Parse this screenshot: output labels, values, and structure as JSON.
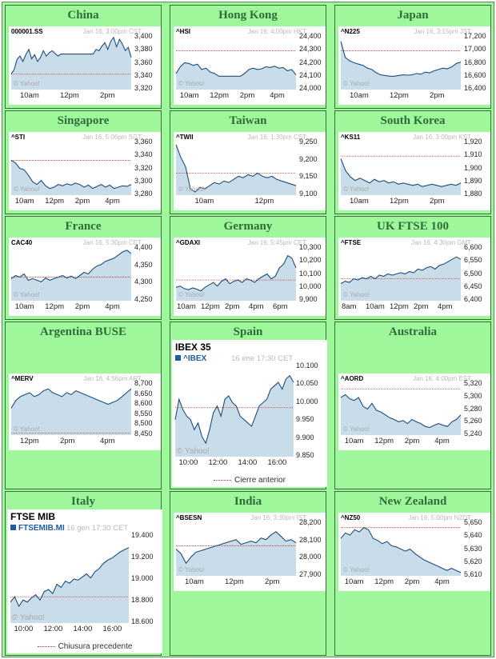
{
  "colors": {
    "background": "#9ff79c",
    "title": "#2e6d38",
    "line": "#1e4d7a",
    "fill": "#c9dcea",
    "prevclose": "#c0392b"
  },
  "charts": [
    {
      "region": "China",
      "symbol": "000001.SS",
      "stamp": "Jan 16, 3:00pm CST",
      "watermark": "© Yahoo!",
      "yticks": [
        "3,400",
        "3,380",
        "3,360",
        "3,340",
        "3,320"
      ],
      "xticks": [
        "10am",
        "12pm",
        "2pm"
      ],
      "ymin": 3320,
      "ymax": 3400,
      "prev": 3343,
      "series": [
        3343,
        3350,
        3365,
        3370,
        3362,
        3372,
        3380,
        3366,
        3372,
        3362,
        3368,
        3378,
        3370,
        3375,
        3378,
        3374,
        3370,
        3373,
        3373,
        3373,
        3373,
        3373,
        3373,
        3373,
        3373,
        3373,
        3373,
        3373,
        3373,
        3380,
        3378,
        3385,
        3390,
        3380,
        3392,
        3398,
        3384,
        3395,
        3388,
        3378,
        3383,
        3368
      ]
    },
    {
      "region": "Hong Kong",
      "symbol": "^HSI",
      "stamp": "Jan 16, 4:00pm HKT",
      "watermark": "© Yahoo!",
      "yticks": [
        "24,400",
        "24,300",
        "24,200",
        "24,100",
        "24,000"
      ],
      "xticks": [
        "10am",
        "12pm",
        "2pm",
        "4pm"
      ],
      "ymin": 24000,
      "ymax": 24400,
      "prev": 24290,
      "series": [
        24120,
        24170,
        24200,
        24195,
        24180,
        24190,
        24150,
        24160,
        24130,
        24120,
        24100,
        24100,
        24100,
        24100,
        24100,
        24100,
        24120,
        24150,
        24160,
        24150,
        24155,
        24170,
        24165,
        24175,
        24160,
        24165,
        24140,
        24150,
        24110
      ]
    },
    {
      "region": "Japan",
      "symbol": "^N225",
      "stamp": "Jan 16, 3:15pm JST",
      "watermark": "© Yahoo!",
      "yticks": [
        "17,200",
        "17,000",
        "16,800",
        "16,600",
        "16,400"
      ],
      "xticks": [
        "10am",
        "12pm",
        "2pm"
      ],
      "ymin": 16400,
      "ymax": 17200,
      "prev": 16980,
      "series": [
        17120,
        16880,
        16830,
        16800,
        16780,
        16760,
        16720,
        16700,
        16650,
        16620,
        16610,
        16600,
        16600,
        16610,
        16620,
        16615,
        16620,
        16640,
        16630,
        16660,
        16650,
        16680,
        16700,
        16720,
        16710,
        16740,
        16790,
        16810
      ]
    },
    {
      "region": "Singapore",
      "symbol": "^STI",
      "stamp": "Jan 16, 5:06pm SGT",
      "watermark": "© Yahoo!",
      "yticks": [
        "3,360",
        "3,340",
        "3,320",
        "3,300",
        "3,280"
      ],
      "xticks": [
        "10am",
        "12pm",
        "2pm",
        "4pm"
      ],
      "ymin": 3280,
      "ymax": 3360,
      "prev": 3332,
      "series": [
        3332,
        3328,
        3320,
        3318,
        3310,
        3300,
        3296,
        3302,
        3294,
        3290,
        3292,
        3296,
        3294,
        3297,
        3295,
        3298,
        3296,
        3292,
        3295,
        3290,
        3293,
        3296,
        3292,
        3295,
        3290,
        3292,
        3294,
        3293,
        3296
      ]
    },
    {
      "region": "Taiwan",
      "symbol": "^TWII",
      "stamp": "Jan 16, 1:30pm CST",
      "watermark": "© Yahoo!",
      "yticks": [
        "9,250",
        "9,200",
        "9,150",
        "9,100"
      ],
      "xticks": [
        "10am",
        "12pm"
      ],
      "ymin": 9090,
      "ymax": 9260,
      "prev": 9160,
      "series": [
        9250,
        9210,
        9180,
        9110,
        9100,
        9115,
        9110,
        9120,
        9130,
        9125,
        9135,
        9130,
        9140,
        9150,
        9145,
        9155,
        9150,
        9160,
        9150,
        9145,
        9150,
        9140,
        9135,
        9130,
        9125,
        9120
      ]
    },
    {
      "region": "South Korea",
      "symbol": "^KS11",
      "stamp": "Jan 16, 3:00pm KST",
      "watermark": "© Yahoo!",
      "yticks": [
        "1,920",
        "1,910",
        "1,900",
        "1,890",
        "1,880"
      ],
      "xticks": [
        "10am",
        "12pm",
        "2pm"
      ],
      "ymin": 1878,
      "ymax": 1922,
      "prev": 1910,
      "series": [
        1908,
        1898,
        1893,
        1890,
        1892,
        1890,
        1888,
        1891,
        1889,
        1890,
        1888,
        1889,
        1887,
        1888,
        1887,
        1886,
        1887,
        1885,
        1886,
        1887,
        1886,
        1885,
        1886,
        1887,
        1886,
        1888
      ]
    },
    {
      "region": "France",
      "symbol": "CAC40",
      "stamp": "Jan 16, 5:30pm CET",
      "watermark": "© Yahoo!",
      "yticks": [
        "4,400",
        "4,350",
        "4,300",
        "4,250"
      ],
      "xticks": [
        "10am",
        "12pm",
        "2pm",
        "4pm"
      ],
      "ymin": 4240,
      "ymax": 4410,
      "prev": 4315,
      "series": [
        4310,
        4320,
        4315,
        4325,
        4305,
        4310,
        4305,
        4300,
        4312,
        4305,
        4310,
        4315,
        4320,
        4312,
        4318,
        4310,
        4320,
        4330,
        4325,
        4340,
        4350,
        4355,
        4365,
        4370,
        4375,
        4385,
        4395,
        4400,
        4390
      ]
    },
    {
      "region": "Germany",
      "symbol": "^GDAXI",
      "stamp": "Jan 16, 5:45pm CET",
      "watermark": "© Yahoo!",
      "yticks": [
        "10,300",
        "10,200",
        "10,100",
        "10,000",
        "9,900"
      ],
      "xticks": [
        "10am",
        "12pm",
        "2pm",
        "4pm",
        "6pm"
      ],
      "ymin": 9880,
      "ymax": 10320,
      "prev": 10050,
      "series": [
        9990,
        10000,
        9980,
        9970,
        9985,
        9975,
        9960,
        9990,
        10010,
        10030,
        10000,
        10040,
        10060,
        10020,
        10040,
        10050,
        10030,
        10060,
        10050,
        10030,
        10060,
        10080,
        10100,
        10060,
        10080,
        10150,
        10180,
        10250,
        10230,
        10150
      ]
    },
    {
      "region": "UK FTSE 100",
      "symbol": "^FTSE",
      "stamp": "Jan 16, 4:30pm GMT",
      "watermark": "© Yahoo!",
      "yticks": [
        "6,600",
        "6,550",
        "6,500",
        "6,450",
        "6,400"
      ],
      "xticks": [
        "8am",
        "10am",
        "12pm",
        "2pm",
        "4pm"
      ],
      "ymin": 6390,
      "ymax": 6610,
      "prev": 6480,
      "series": [
        6460,
        6470,
        6465,
        6480,
        6475,
        6485,
        6480,
        6490,
        6480,
        6495,
        6490,
        6500,
        6495,
        6500,
        6505,
        6500,
        6510,
        6505,
        6520,
        6515,
        6525,
        6530,
        6520,
        6535,
        6540,
        6550,
        6560,
        6570,
        6560
      ]
    },
    {
      "region": "Argentina BUSE",
      "symbol": "^MERV",
      "stamp": "Jan 16, 4:56pm ART",
      "watermark": "© Yahoo!",
      "yticks": [
        "8,700",
        "8,650",
        "8,600",
        "8,550",
        "8,500",
        "8,450"
      ],
      "xticks": [
        "12pm",
        "2pm",
        "4pm"
      ],
      "ymin": 8440,
      "ymax": 8710,
      "prev": 8450,
      "series": [
        8580,
        8620,
        8640,
        8650,
        8660,
        8640,
        8650,
        8670,
        8680,
        8660,
        8650,
        8640,
        8660,
        8650,
        8670,
        8660,
        8650,
        8640,
        8630,
        8620,
        8610,
        8600,
        8610,
        8620,
        8640,
        8660,
        8680
      ]
    },
    {
      "region": "Spain",
      "big": true,
      "title": "IBEX 35",
      "symbol": "^IBEX",
      "stamp": "16 ene 17:30 CET",
      "watermark": "© Yahoo!",
      "legend": "Cierre anterior",
      "yticks": [
        "10.100",
        "10.050",
        "10.000",
        "9.950",
        "9.900",
        "9.850"
      ],
      "xticks": [
        "10:00",
        "12:00",
        "14:00",
        "16:00"
      ],
      "ymin": 9840,
      "ymax": 10110,
      "prev": 9985,
      "series": [
        9950,
        10010,
        9980,
        9960,
        9950,
        9920,
        9940,
        9900,
        9880,
        9920,
        9970,
        9990,
        9960,
        10010,
        10020,
        10000,
        9990,
        9960,
        9950,
        9940,
        9930,
        9960,
        9990,
        10000,
        10010,
        10040,
        10050,
        10060,
        10040,
        10070,
        10080,
        10060
      ]
    },
    {
      "region": "Australia",
      "symbol": "^AORD",
      "stamp": "Jan 16, 4:00pm EST",
      "watermark": "© Yahoo!",
      "yticks": [
        "5,320",
        "5,300",
        "5,280",
        "5,260",
        "5,240"
      ],
      "xticks": [
        "10am",
        "12pm",
        "2pm",
        "4pm"
      ],
      "ymin": 5235,
      "ymax": 5325,
      "prev": 5315,
      "series": [
        5300,
        5305,
        5298,
        5295,
        5300,
        5285,
        5280,
        5290,
        5278,
        5275,
        5270,
        5265,
        5262,
        5258,
        5260,
        5255,
        5262,
        5258,
        5255,
        5250,
        5248,
        5252,
        5255,
        5252,
        5250,
        5258,
        5262,
        5270
      ]
    },
    {
      "region": "Italy",
      "big": true,
      "title": "FTSE MIB",
      "symbol": "FTSEMIB.MI",
      "stamp": "16 gen 17:30 CET",
      "watermark": "© Yahoo!",
      "legend": "Chiusura precedente",
      "yticks": [
        "19.400",
        "19.200",
        "19.000",
        "18.800",
        "18.600"
      ],
      "xticks": [
        "10:00",
        "12:00",
        "14:00",
        "16:00"
      ],
      "ymin": 18580,
      "ymax": 19420,
      "prev": 18830,
      "series": [
        18780,
        18830,
        18740,
        18800,
        18780,
        18820,
        18850,
        18800,
        18880,
        18900,
        18860,
        18950,
        18920,
        18980,
        18960,
        19000,
        18990,
        19020,
        19050,
        19010,
        19070,
        19100,
        19150,
        19180,
        19200,
        19230,
        19260,
        19280,
        19300
      ]
    },
    {
      "region": "India",
      "symbol": "^BSESN",
      "stamp": "Jan 16, 3:30pm IST",
      "watermark": "© Yahoo!",
      "yticks": [
        "28,200",
        "28,100",
        "28,000",
        "27,900"
      ],
      "xticks": [
        "10am",
        "12pm",
        "2pm"
      ],
      "ymin": 27880,
      "ymax": 28220,
      "prev": 28070,
      "series": [
        28050,
        28020,
        27960,
        28000,
        28030,
        28040,
        28050,
        28060,
        28070,
        28080,
        28090,
        28100,
        28110,
        28080,
        28090,
        28100,
        28090,
        28120,
        28110,
        28140,
        28160,
        28130,
        28100,
        28110,
        28090
      ]
    },
    {
      "region": "New Zealand",
      "symbol": "^NZ50",
      "stamp": "Jan 16, 5:00pm NZDT",
      "watermark": "© Yahoo!",
      "yticks": [
        "5,650",
        "5,640",
        "5,630",
        "5,620",
        "5,610"
      ],
      "xticks": [
        "10am",
        "12pm",
        "2pm",
        "4pm"
      ],
      "ymin": 5605,
      "ymax": 5655,
      "prev": 5650,
      "series": [
        5640,
        5645,
        5643,
        5648,
        5646,
        5650,
        5648,
        5640,
        5638,
        5635,
        5637,
        5633,
        5632,
        5630,
        5628,
        5630,
        5626,
        5623,
        5620,
        5618,
        5616,
        5614,
        5612,
        5610,
        5612,
        5610,
        5608
      ]
    }
  ]
}
